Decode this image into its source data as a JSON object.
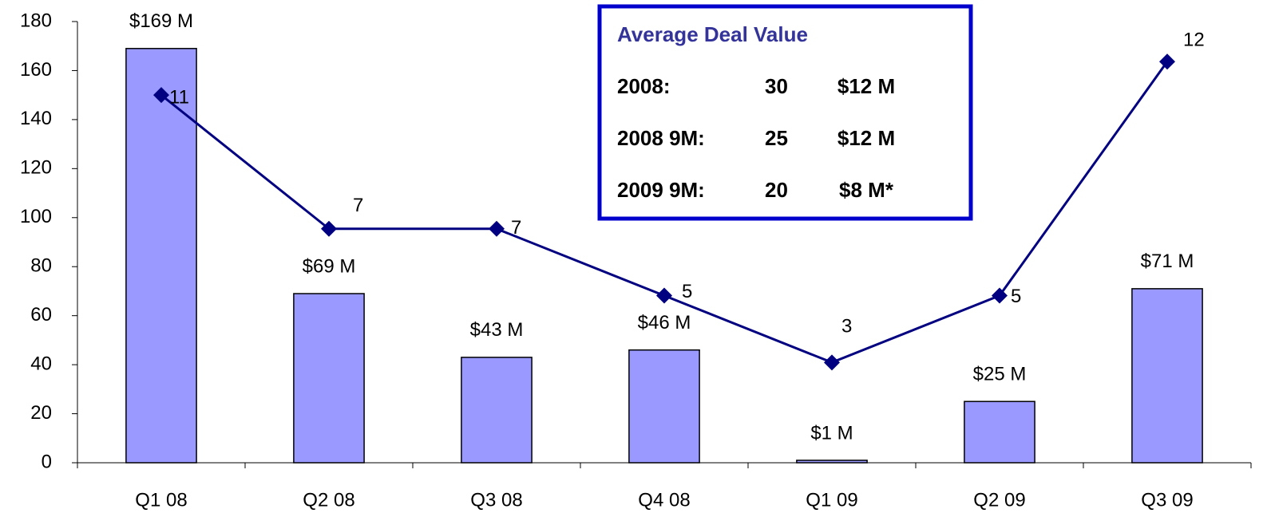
{
  "chart_data": {
    "type": "bar",
    "categories": [
      "Q1 08",
      "Q2 08",
      "Q3 08",
      "Q4 08",
      "Q1 09",
      "Q2 09",
      "Q3 09"
    ],
    "series": [
      {
        "type": "bar",
        "color": "#9999ff",
        "values": [
          169,
          69,
          43,
          46,
          1,
          25,
          71
        ],
        "value_labels": [
          "$169 M",
          "$69 M",
          "$43 M",
          "$46 M",
          "$1 M",
          "$25 M",
          "$71 M"
        ]
      },
      {
        "type": "line",
        "axis": "y2",
        "color": "#000080",
        "values": [
          11,
          7,
          7,
          5,
          3,
          5,
          12
        ]
      }
    ],
    "ylim": [
      0,
      180
    ],
    "yticks": [
      0,
      20,
      40,
      60,
      80,
      100,
      120,
      140,
      160,
      180
    ],
    "y2lim": [
      0,
      13.2
    ],
    "info_box": {
      "title": "Average Deal Value",
      "rows": [
        [
          "2008:",
          "30",
          "$12 M"
        ],
        [
          "2008 9M:",
          "25",
          "$12 M"
        ],
        [
          "2009 9M:",
          "20",
          "$8 M*"
        ]
      ]
    }
  }
}
